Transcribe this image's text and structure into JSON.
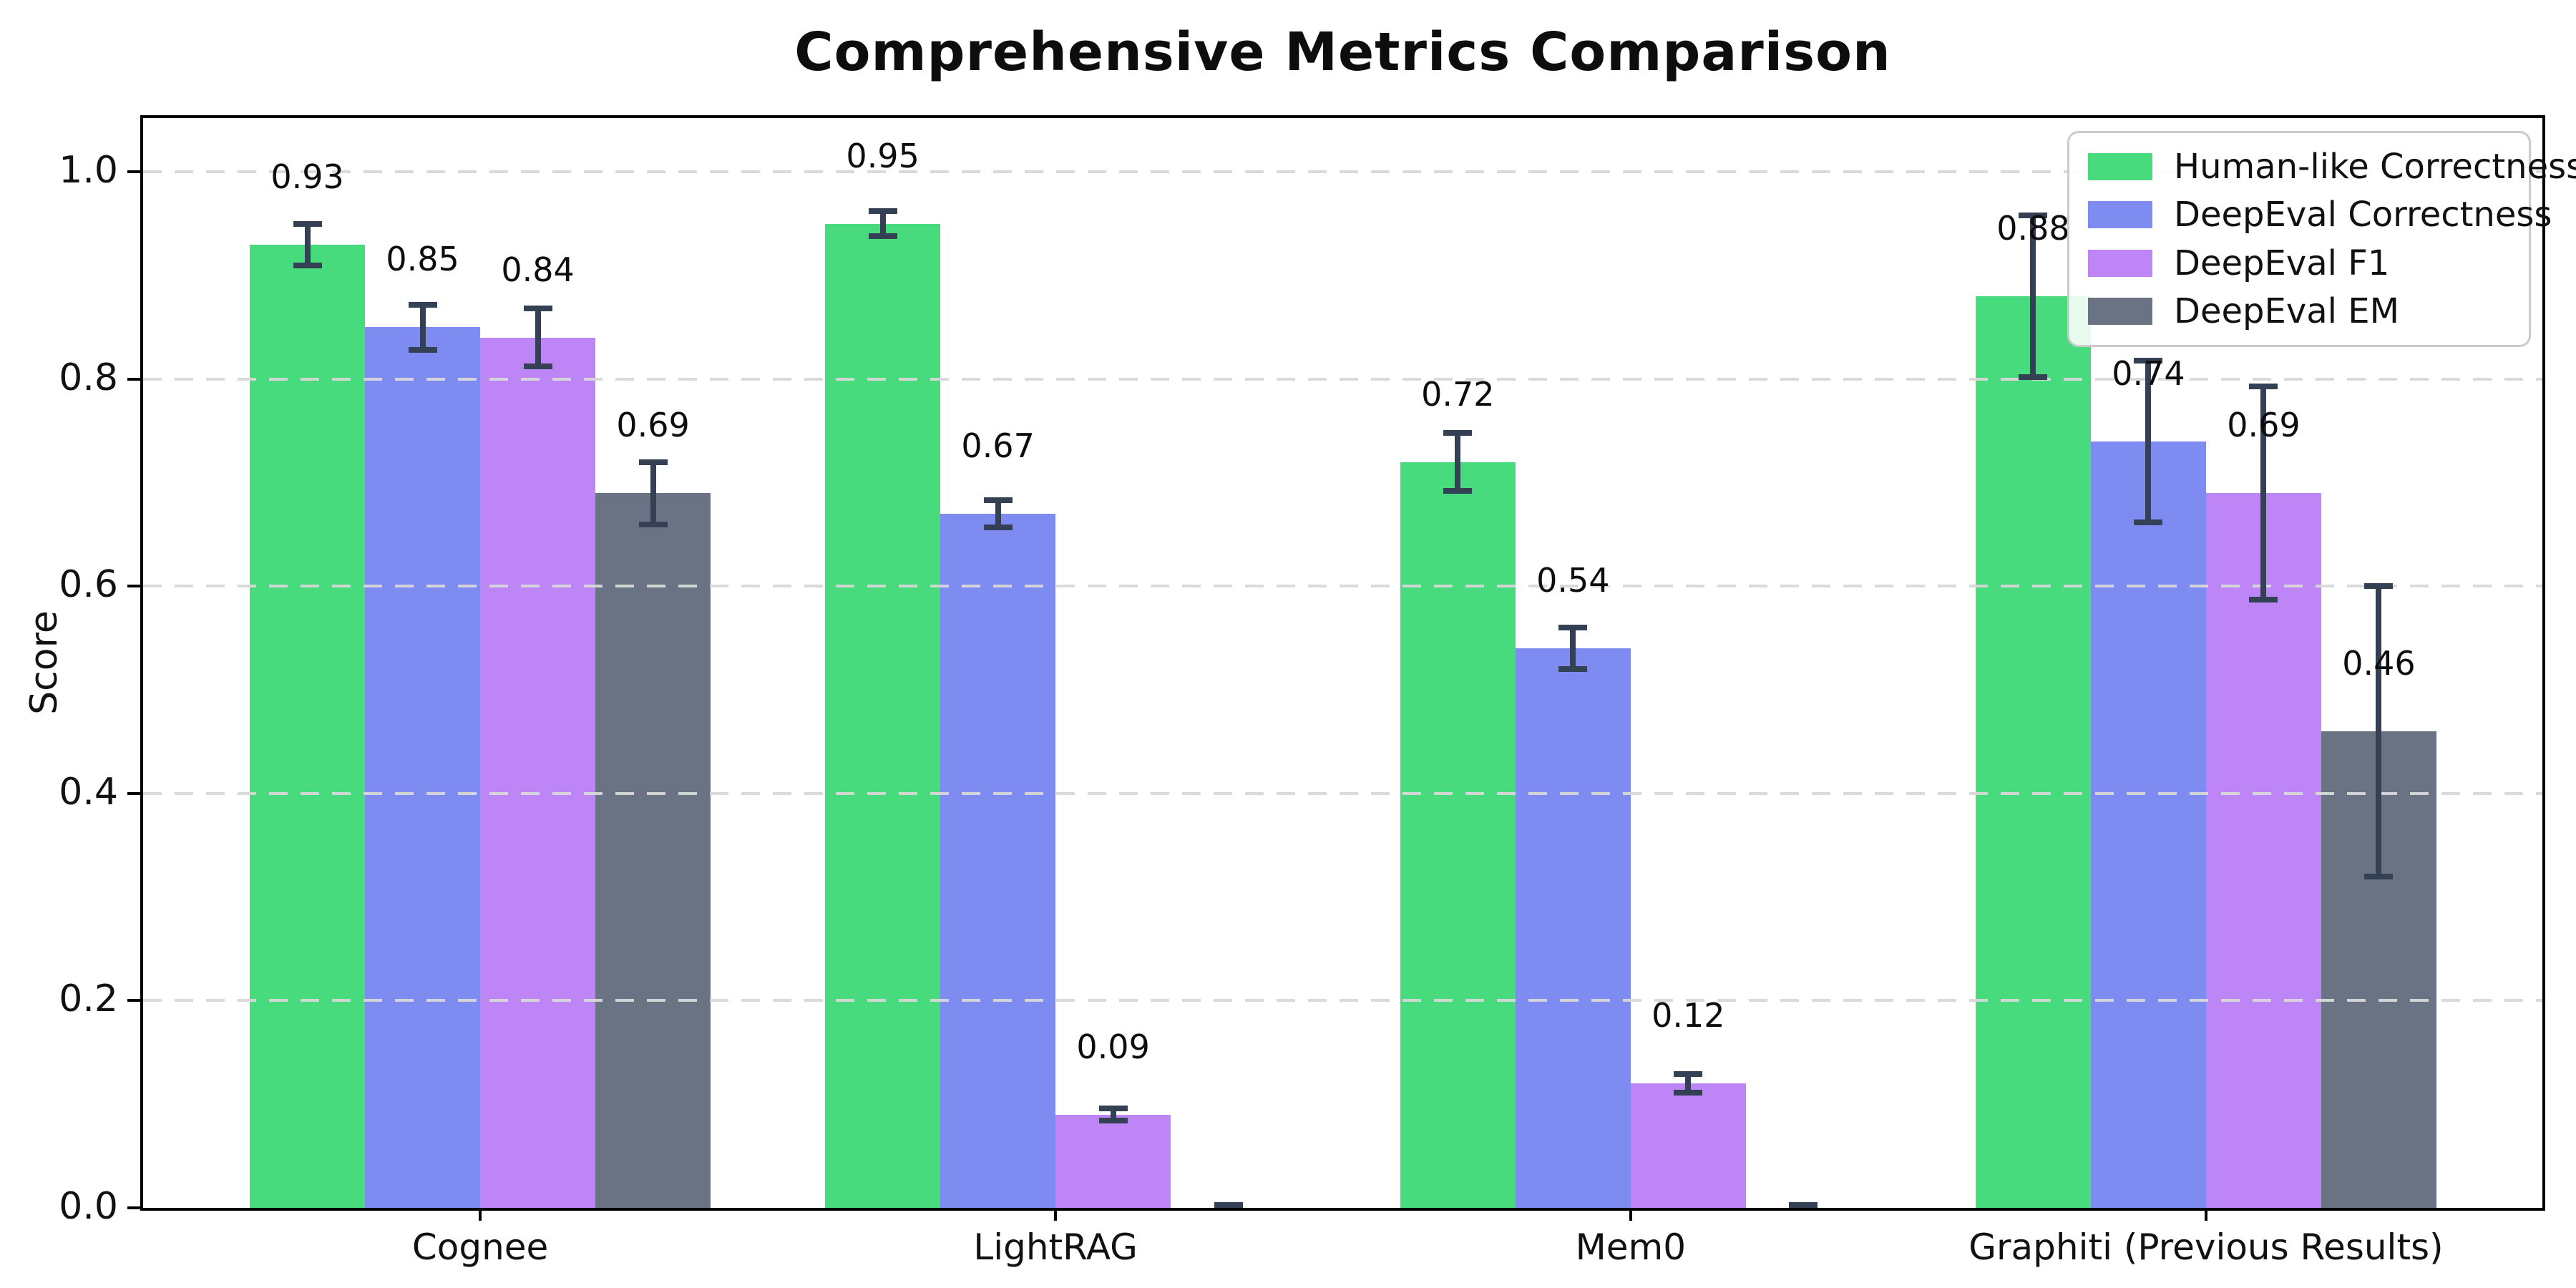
{
  "figure": {
    "background": "#ffffff"
  },
  "chart_data": {
    "type": "bar",
    "title": "Comprehensive Metrics Comparison",
    "ylabel": "Score",
    "xlabel": "",
    "categories": [
      "Cognee",
      "LightRAG",
      "Mem0",
      "Graphiti (Previous Results)"
    ],
    "series": [
      {
        "name": "Human-like Correctness",
        "color": "#48DB7E",
        "values": [
          0.93,
          0.95,
          0.72,
          0.88
        ],
        "errors": [
          0.02,
          0.012,
          0.028,
          0.078
        ],
        "labels": [
          "0.93",
          "0.95",
          "0.72",
          "0.88"
        ]
      },
      {
        "name": "DeepEval Correctness",
        "color": "#7E8CF2",
        "values": [
          0.85,
          0.67,
          0.54,
          0.74
        ],
        "errors": [
          0.022,
          0.013,
          0.02,
          0.078
        ],
        "labels": [
          "0.85",
          "0.67",
          "0.54",
          "0.74"
        ]
      },
      {
        "name": "DeepEval F1",
        "color": "#BD85F5",
        "values": [
          0.84,
          0.09,
          0.12,
          0.69
        ],
        "errors": [
          0.028,
          0.006,
          0.009,
          0.103
        ],
        "labels": [
          "0.84",
          "0.09",
          "0.12",
          "0.69"
        ]
      },
      {
        "name": "DeepEval EM",
        "color": "#6A7383",
        "values": [
          0.69,
          0.0,
          0.0,
          0.46
        ],
        "errors": [
          0.03,
          0.003,
          0.003,
          0.14
        ],
        "labels": [
          "0.69",
          "",
          "",
          "0.46"
        ]
      }
    ],
    "ylim": [
      0,
      1.05
    ],
    "yticks": [
      "0.0",
      "0.2",
      "0.4",
      "0.6",
      "0.8",
      "1.0"
    ],
    "grid": "dashed-horizontal-over-bars",
    "legend_position": "upper-right",
    "error_bar_color": "#344054",
    "grid_color": "#d8d8d8",
    "axis_color": "#000000",
    "text_color": "#111111"
  }
}
